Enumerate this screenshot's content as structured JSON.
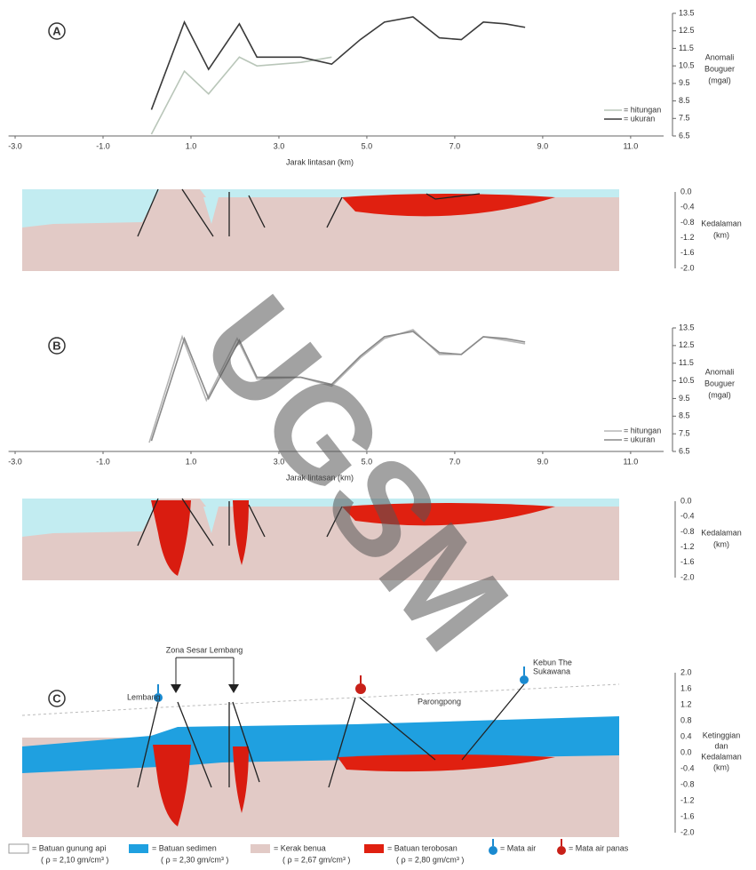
{
  "chart_data": [
    {
      "type": "line",
      "panel": "A",
      "x_label": "Jarak lintasan (km)",
      "y_label": [
        "Anomali",
        "Bouguer",
        "(mgal)"
      ],
      "xlim": [
        -3.15,
        11.75
      ],
      "ylim": [
        6.5,
        13.5
      ],
      "xticks": [
        {
          "value": -3,
          "label": "-3.0"
        },
        {
          "value": -1,
          "label": "-1.0"
        },
        {
          "value": 1,
          "label": "1.0"
        },
        {
          "value": 3,
          "label": "3.0"
        },
        {
          "value": 5,
          "label": "5.0"
        },
        {
          "value": 7,
          "label": "7.0"
        },
        {
          "value": 9,
          "label": "9.0"
        },
        {
          "value": 11,
          "label": "11.0"
        }
      ],
      "yticks": [
        13.5,
        12.5,
        11.5,
        10.5,
        9.5,
        8.5,
        7.5,
        6.5
      ],
      "series": [
        {
          "name": "= hitungan",
          "color": "#b9c6b9",
          "x": [
            0.1,
            0.85,
            1.4,
            2.1,
            2.5,
            3.5,
            4.2
          ],
          "values": [
            6.6,
            10.2,
            8.9,
            11.0,
            10.5,
            10.7,
            11.0
          ]
        },
        {
          "name": "= ukuran",
          "color": "#3a3a3a",
          "x": [
            0.1,
            0.85,
            1.4,
            2.1,
            2.5,
            3.5,
            4.2,
            4.85,
            5.4,
            6.05,
            6.65,
            7.15,
            7.65,
            8.15,
            8.6
          ],
          "values": [
            8.0,
            13.0,
            10.3,
            12.9,
            11.0,
            11.0,
            10.6,
            12.0,
            13.0,
            13.3,
            12.1,
            12.0,
            13.0,
            12.9,
            12.7
          ]
        }
      ]
    },
    {
      "type": "line",
      "panel": "B",
      "x_label": "Jarak lintasan (km)",
      "y_label": [
        "Anomali",
        "Bouguer",
        "(mgal)"
      ],
      "xlim": [
        -3.15,
        11.75
      ],
      "ylim": [
        6.5,
        13.5
      ],
      "xticks": [
        {
          "value": -3,
          "label": "-3.0"
        },
        {
          "value": -1,
          "label": "-1.0"
        },
        {
          "value": 1,
          "label": "1.0"
        },
        {
          "value": 3,
          "label": "3.0"
        },
        {
          "value": 5,
          "label": "5.0"
        },
        {
          "value": 7,
          "label": "7.0"
        },
        {
          "value": 9,
          "label": "9.0"
        },
        {
          "value": 11,
          "label": "11.0"
        }
      ],
      "yticks": [
        13.5,
        12.5,
        11.5,
        10.5,
        9.5,
        8.5,
        7.5,
        6.5
      ],
      "series": [
        {
          "name": "= hitungan",
          "color": "#b5b5b5",
          "x": [
            0.05,
            0.8,
            1.35,
            2.05,
            2.5,
            3.5,
            4.2,
            4.85,
            5.4,
            6.05,
            6.65,
            7.15,
            7.65,
            8.15,
            8.6
          ],
          "values": [
            7.0,
            13.0,
            9.4,
            12.9,
            10.6,
            10.7,
            10.2,
            11.8,
            12.9,
            13.4,
            12.0,
            12.0,
            13.0,
            12.8,
            12.6
          ]
        },
        {
          "name": "= ukuran",
          "color": "#8a8a8a",
          "x": [
            0.1,
            0.85,
            1.4,
            2.1,
            2.5,
            3.5,
            4.2,
            4.85,
            5.4,
            6.05,
            6.65,
            7.15,
            7.65,
            8.15,
            8.6
          ],
          "values": [
            7.1,
            12.9,
            9.5,
            12.8,
            10.7,
            10.7,
            10.3,
            11.9,
            13.0,
            13.3,
            12.1,
            12.0,
            13.0,
            12.9,
            12.7
          ]
        }
      ]
    }
  ],
  "sections": [
    {
      "depth_label": [
        "Kedalaman",
        "(km)"
      ],
      "ticks": [
        "0.0",
        "-0.4",
        "-0.8",
        "-1.2",
        "-1.6",
        "-2.0"
      ]
    },
    {
      "depth_label": [
        "Kedalaman",
        "(km)"
      ],
      "ticks": [
        "0.0",
        "-0.4",
        "-0.8",
        "-1.2",
        "-1.6",
        "-2.0"
      ]
    }
  ],
  "section_c": {
    "panel": "C",
    "fault_zone": "Zona Sesar Lembang",
    "places": [
      "Lembang",
      "Parongpong",
      "Kebun The",
      "Sukawana"
    ],
    "axis_label": [
      "Ketinggian",
      "dan",
      "Kedalaman",
      "(km)"
    ],
    "ticks": [
      "2.0",
      "1.6",
      "1.2",
      "0.8",
      "0.4",
      "0.0",
      "-0.4",
      "-0.8",
      "-1.2",
      "-1.6",
      "-2.0"
    ]
  },
  "legend": [
    {
      "label": "= Batuan gunung api",
      "note": "( ρ = 2,10 gm/cm³ )"
    },
    {
      "label": "= Batuan sedimen",
      "note": "( ρ = 2,30 gm/cm³ )"
    },
    {
      "label": "= Kerak benua",
      "note": "( ρ = 2,67 gm/cm³ )"
    },
    {
      "label": "= Batuan terobosan",
      "note": "( ρ = 2,80 gm/cm³ )"
    },
    {
      "label": "= Mata air"
    },
    {
      "label": "= Mata air panas"
    }
  ],
  "watermark": "UGSM"
}
